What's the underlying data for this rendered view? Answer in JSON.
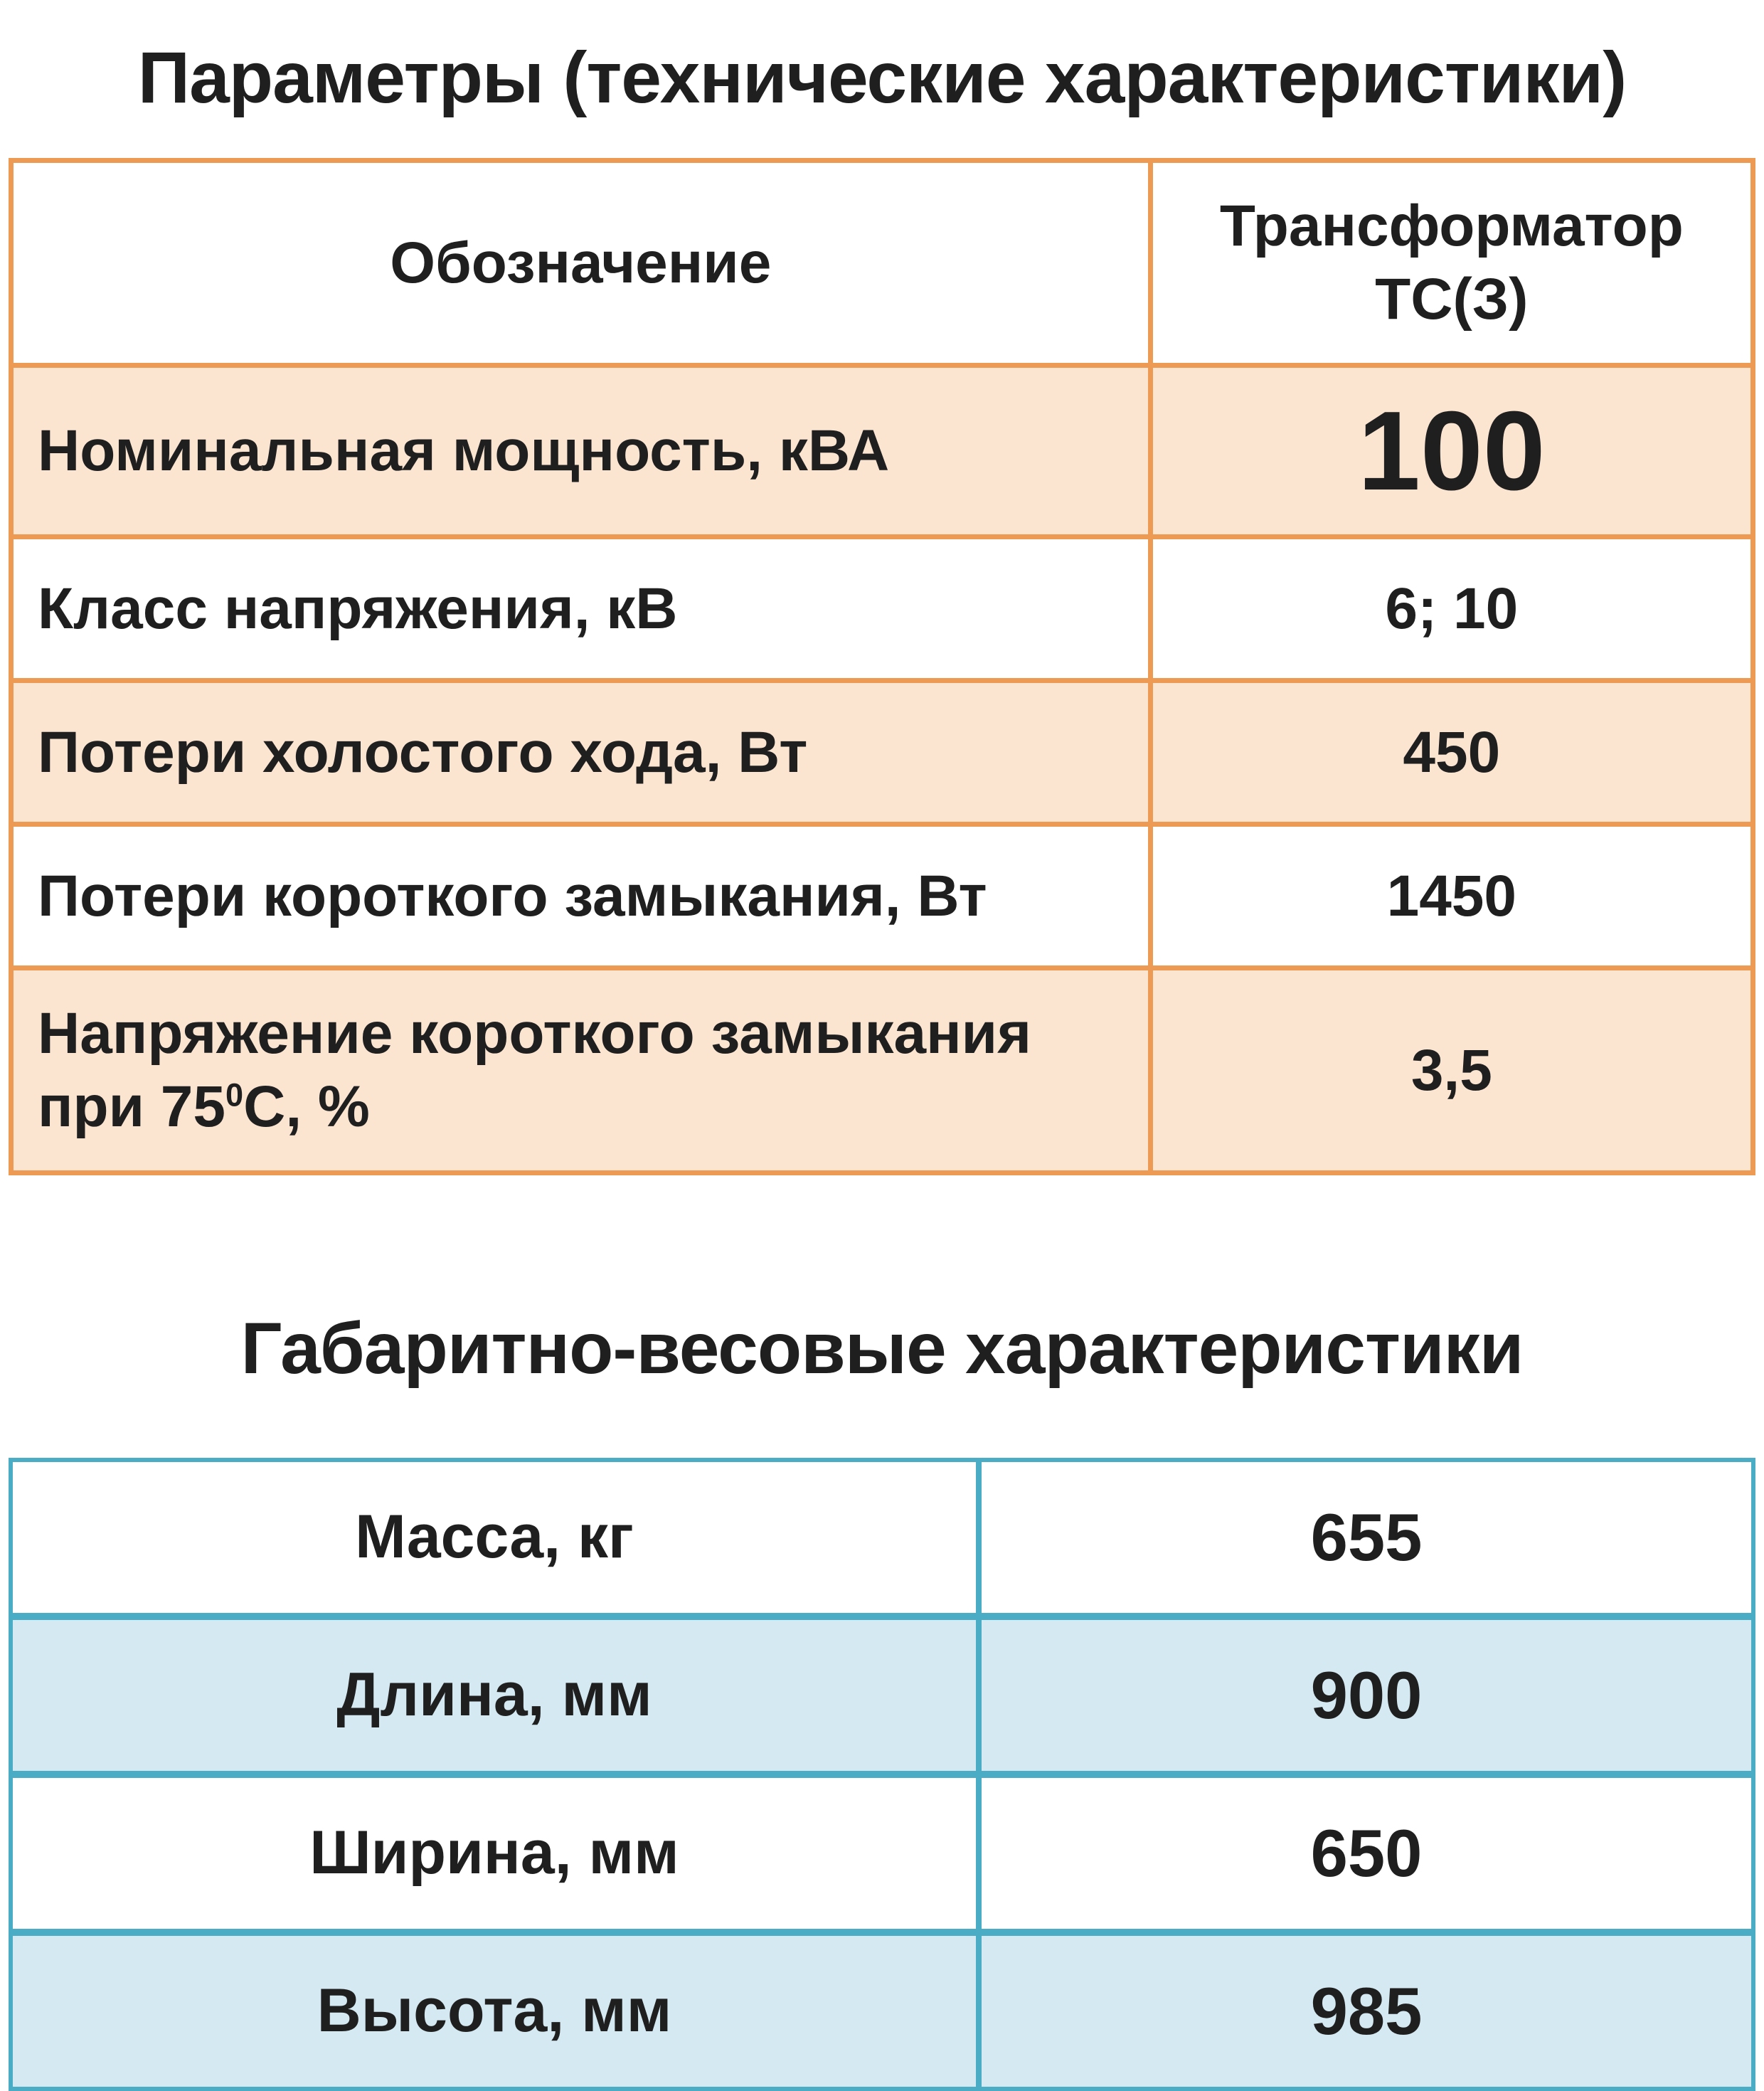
{
  "colors": {
    "orange_border": "#ED9B54",
    "peach_row_bg": "#FBE5D1",
    "teal_border": "#4BACC6",
    "blue_row_bg": "#D4E9F1",
    "text": "#1F1F1F"
  },
  "titles": {
    "technical": "Параметры (технические характеристики)",
    "dimensions": "Габаритно-весовые характеристики"
  },
  "spec_table": {
    "header": {
      "designation": "Обозначение",
      "transformer": "Трансформатор ТС(З)"
    },
    "rows": [
      {
        "label": "Номинальная мощность, кВА",
        "value": "100"
      },
      {
        "label": "Класс напряжения, кВ",
        "value": "6; 10"
      },
      {
        "label": "Потери холостого хода, Вт",
        "value": "450"
      },
      {
        "label": "Потери короткого замыкания, Вт",
        "value": "1450"
      },
      {
        "label_pre": "Напряжение короткого замыкания при 75",
        "label_sup": "0",
        "label_post": "С, %",
        "value": "3,5"
      }
    ]
  },
  "dim_table": {
    "rows": [
      {
        "label": "Масса, кг",
        "value": "655"
      },
      {
        "label": "Длина, мм",
        "value": "900"
      },
      {
        "label": "Ширина, мм",
        "value": "650"
      },
      {
        "label": "Высота, мм",
        "value": "985"
      }
    ]
  }
}
